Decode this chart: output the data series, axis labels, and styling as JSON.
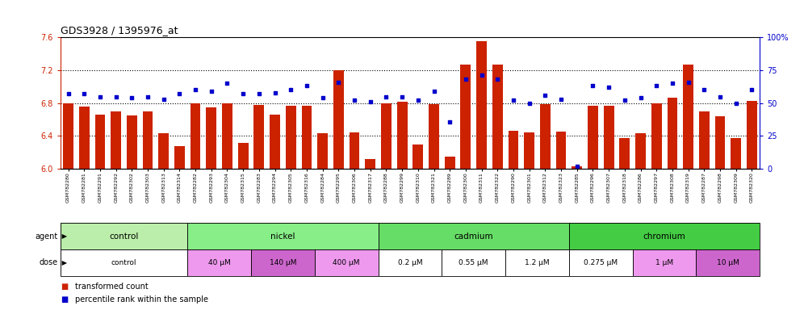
{
  "title": "GDS3928 / 1395976_at",
  "samples": [
    "GSM782280",
    "GSM782281",
    "GSM782291",
    "GSM782292",
    "GSM782302",
    "GSM782303",
    "GSM782313",
    "GSM782314",
    "GSM782282",
    "GSM782293",
    "GSM782304",
    "GSM782315",
    "GSM782283",
    "GSM782294",
    "GSM782305",
    "GSM782316",
    "GSM782284",
    "GSM782295",
    "GSM782306",
    "GSM782317",
    "GSM782288",
    "GSM782299",
    "GSM782310",
    "GSM782321",
    "GSM782289",
    "GSM782300",
    "GSM782311",
    "GSM782322",
    "GSM782290",
    "GSM782301",
    "GSM782312",
    "GSM782323",
    "GSM782285",
    "GSM782296",
    "GSM782307",
    "GSM782318",
    "GSM782286",
    "GSM782297",
    "GSM782308",
    "GSM782319",
    "GSM782287",
    "GSM782298",
    "GSM782309",
    "GSM782320"
  ],
  "transformed_count": [
    6.8,
    6.76,
    6.66,
    6.7,
    6.65,
    6.7,
    6.43,
    6.28,
    6.8,
    6.75,
    6.8,
    6.32,
    6.78,
    6.66,
    6.77,
    6.77,
    6.43,
    7.2,
    6.44,
    6.12,
    6.8,
    6.82,
    6.3,
    6.79,
    6.15,
    7.27,
    7.55,
    7.27,
    6.46,
    6.44,
    6.79,
    6.45,
    6.03,
    6.77,
    6.77,
    6.38,
    6.43,
    6.8,
    6.87,
    7.27,
    6.7,
    6.64,
    6.38,
    6.83
  ],
  "percentile_rank": [
    57,
    57,
    55,
    55,
    54,
    55,
    53,
    57,
    60,
    59,
    65,
    57,
    57,
    58,
    60,
    63,
    54,
    66,
    52,
    51,
    55,
    55,
    52,
    59,
    36,
    68,
    71,
    68,
    52,
    50,
    56,
    53,
    2,
    63,
    62,
    52,
    54,
    63,
    65,
    66,
    60,
    55,
    50,
    60
  ],
  "ylim_left": [
    6.0,
    7.6
  ],
  "ylim_right": [
    0,
    100
  ],
  "yticks_left": [
    6.0,
    6.4,
    6.8,
    7.2,
    7.6
  ],
  "yticks_right": [
    0,
    25,
    50,
    75,
    100
  ],
  "hlines": [
    6.4,
    6.8,
    7.2
  ],
  "bar_color": "#CC2200",
  "dot_color": "#0000CC",
  "agent_groups": [
    {
      "label": "control",
      "start": 0,
      "end": 7,
      "color": "#BBEEAA"
    },
    {
      "label": "nickel",
      "start": 8,
      "end": 19,
      "color": "#88EE88"
    },
    {
      "label": "cadmium",
      "start": 20,
      "end": 31,
      "color": "#66DD66"
    },
    {
      "label": "chromium",
      "start": 32,
      "end": 43,
      "color": "#44CC44"
    }
  ],
  "dose_groups": [
    {
      "label": "control",
      "start": 0,
      "end": 7,
      "color": "#FFFFFF"
    },
    {
      "label": "40 μM",
      "start": 8,
      "end": 11,
      "color": "#EE99EE"
    },
    {
      "label": "140 μM",
      "start": 12,
      "end": 15,
      "color": "#CC66CC"
    },
    {
      "label": "400 μM",
      "start": 16,
      "end": 19,
      "color": "#EE99EE"
    },
    {
      "label": "0.2 μM",
      "start": 20,
      "end": 23,
      "color": "#FFFFFF"
    },
    {
      "label": "0.55 μM",
      "start": 24,
      "end": 27,
      "color": "#FFFFFF"
    },
    {
      "label": "1.2 μM",
      "start": 28,
      "end": 31,
      "color": "#FFFFFF"
    },
    {
      "label": "0.275 μM",
      "start": 32,
      "end": 35,
      "color": "#FFFFFF"
    },
    {
      "label": "1 μM",
      "start": 36,
      "end": 39,
      "color": "#EE99EE"
    },
    {
      "label": "10 μM",
      "start": 40,
      "end": 43,
      "color": "#CC66CC"
    }
  ]
}
